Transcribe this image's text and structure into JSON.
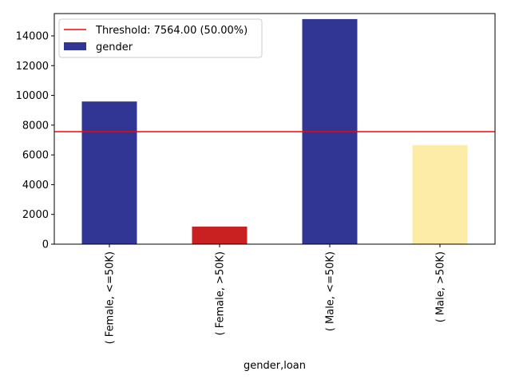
{
  "chart_data": {
    "type": "bar",
    "categories": [
      "( Female,  <=50K)",
      "( Female,  >50K)",
      "( Male,  <=50K)",
      "( Male,  >50K)"
    ],
    "values": [
      9590,
      1180,
      15130,
      6660
    ],
    "bar_colors": [
      "#313695",
      "#c92122",
      "#313695",
      "#fdeca7"
    ],
    "xlabel": "gender,loan",
    "ylabel": "",
    "ylim": [
      0,
      15500
    ],
    "yticks": [
      0,
      2000,
      4000,
      6000,
      8000,
      10000,
      12000,
      14000
    ],
    "threshold": {
      "value": 7564,
      "label": "Threshold: 7564.00 (50.00%)",
      "color": "#ff0000"
    },
    "legend": {
      "placement": "top-left",
      "entries": [
        {
          "label": "Threshold: 7564.00 (50.00%)",
          "kind": "line",
          "color": "#ff0000"
        },
        {
          "label": "gender",
          "kind": "patch",
          "color": "#313695"
        }
      ]
    },
    "grid": false
  }
}
